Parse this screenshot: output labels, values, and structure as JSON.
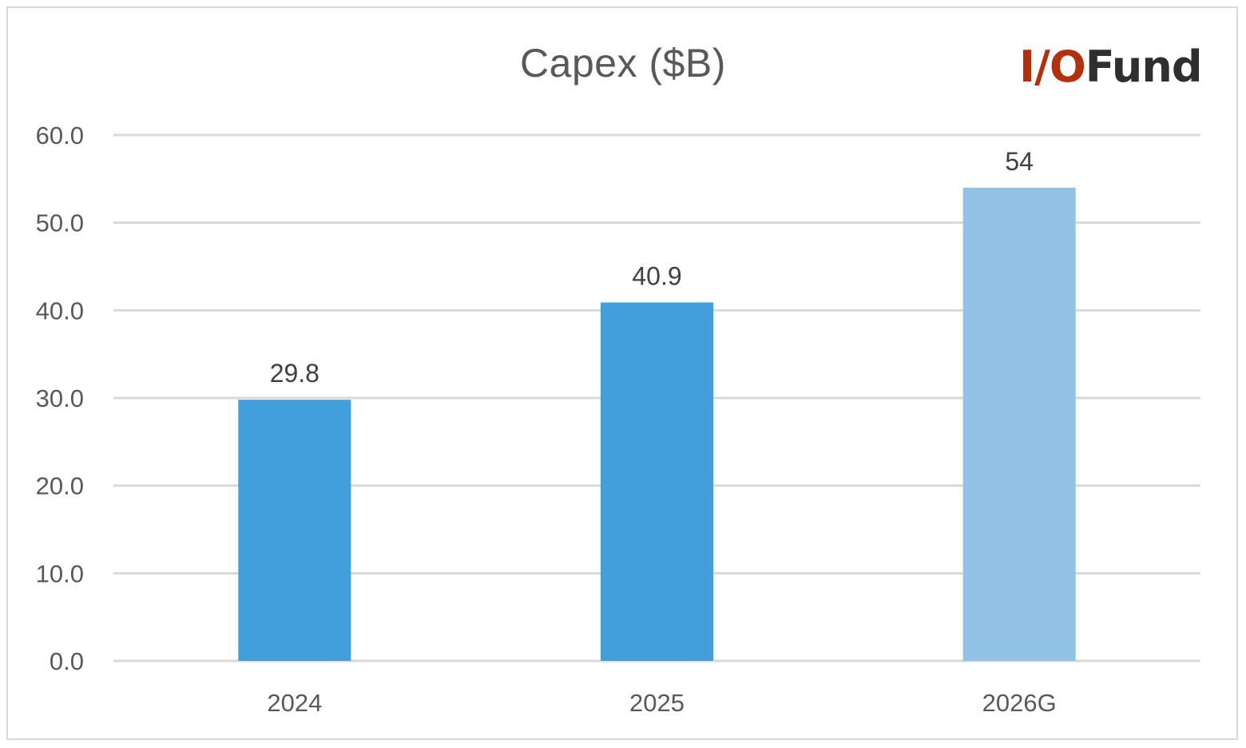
{
  "chart_data": {
    "type": "bar",
    "title": "Capex ($B)",
    "xlabel": "",
    "ylabel": "",
    "categories": [
      "2024",
      "2025",
      "2026G"
    ],
    "values": [
      29.8,
      40.9,
      54
    ],
    "data_labels": [
      "29.8",
      "40.9",
      "54"
    ],
    "bar_colors": [
      "#439fdb",
      "#439fdb",
      "#92c3e6"
    ],
    "ylim": [
      0,
      60
    ],
    "yticks": [
      "0.0",
      "10.0",
      "20.0",
      "30.0",
      "40.0",
      "50.0",
      "60.0"
    ],
    "grid": true,
    "legend": "none"
  },
  "logo": {
    "part1": "I/O",
    "part2": "Fund",
    "colors": {
      "accent": "#b3300d",
      "dark": "#2f2f2f"
    }
  }
}
